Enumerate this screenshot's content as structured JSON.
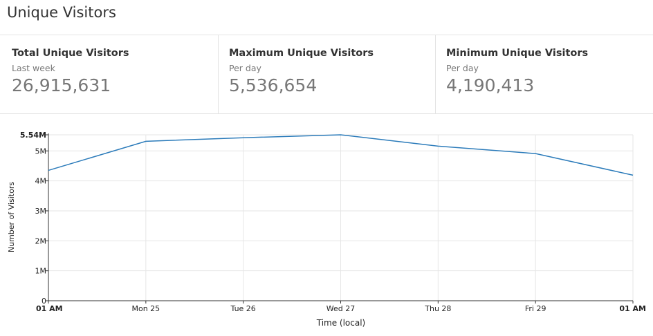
{
  "header": {
    "title": "Unique Visitors"
  },
  "stats": [
    {
      "label": "Total Unique Visitors",
      "sublabel": "Last week",
      "value": "26,915,631"
    },
    {
      "label": "Maximum Unique Visitors",
      "sublabel": "Per day",
      "value": "5,536,654"
    },
    {
      "label": "Minimum Unique Visitors",
      "sublabel": "Per day",
      "value": "4,190,413"
    }
  ],
  "chart_data": {
    "type": "line",
    "x": [
      "01 AM",
      "Mon 25",
      "Tue 26",
      "Wed 27",
      "Thu 28",
      "Fri 29",
      "01 AM"
    ],
    "x_tick_labels": [
      "01 AM",
      "Mon 25",
      "Tue 26",
      "Wed 27",
      "Thu 28",
      "Fri 29",
      "01 AM"
    ],
    "x_tick_bold": [
      true,
      false,
      false,
      false,
      false,
      false,
      true
    ],
    "series": [
      {
        "values": [
          4350000,
          5320000,
          5440000,
          5536654,
          5160000,
          4910000,
          4190413
        ],
        "color": "#2b7bba"
      }
    ],
    "y_ticks": [
      0,
      1000000,
      2000000,
      3000000,
      4000000,
      5000000,
      5536654
    ],
    "y_tick_labels": [
      "0",
      "1M",
      "2M",
      "3M",
      "4M",
      "5M",
      "5.54M"
    ],
    "ylim": [
      0,
      5536654
    ],
    "xlabel": "Time (local)",
    "ylabel": "Number of Visitors",
    "grid": true
  }
}
